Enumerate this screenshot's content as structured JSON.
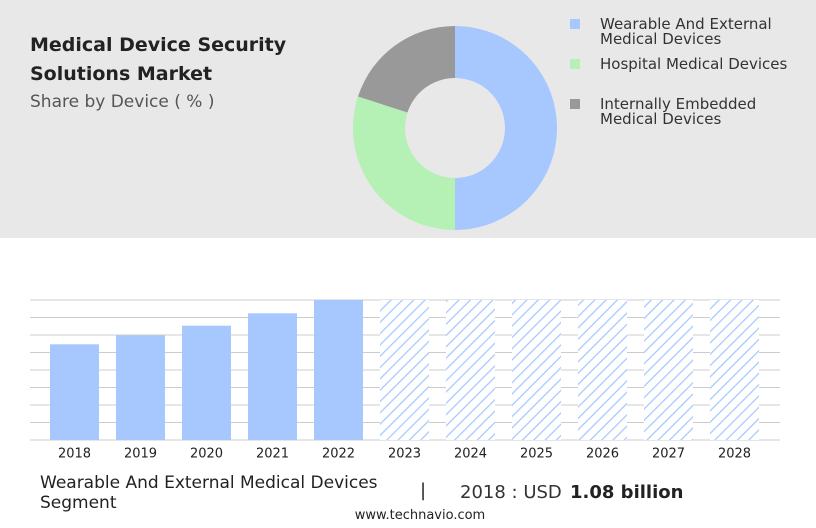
{
  "chart_data": [
    {
      "type": "donut",
      "title": "Medical Device Security Solutions Market",
      "subtitle": "Share by Device ( % )",
      "categories": [
        "Wearable And External Medical Devices",
        "Hospital Medical Devices",
        "Internally Embedded Medical Devices"
      ],
      "values": [
        50,
        30,
        20
      ],
      "colors": [
        "#a6c8ff",
        "#b5f0b5",
        "#999999"
      ]
    },
    {
      "type": "bar",
      "categories": [
        "2018",
        "2019",
        "2020",
        "2021",
        "2022",
        "2023",
        "2024",
        "2025",
        "2026",
        "2027",
        "2028"
      ],
      "values": [
        1.08,
        1.18,
        1.29,
        1.43,
        1.58,
        null,
        null,
        null,
        null,
        null,
        null
      ],
      "color": "#a6c8ff",
      "ylim": [
        0,
        1.58
      ],
      "grid": true
    }
  ],
  "footer": {
    "segment": "Wearable And External Medical Devices Segment",
    "separator": "|",
    "year_label": "2018 : USD",
    "value": "1.08 billion",
    "source": "www.technavio.com"
  }
}
